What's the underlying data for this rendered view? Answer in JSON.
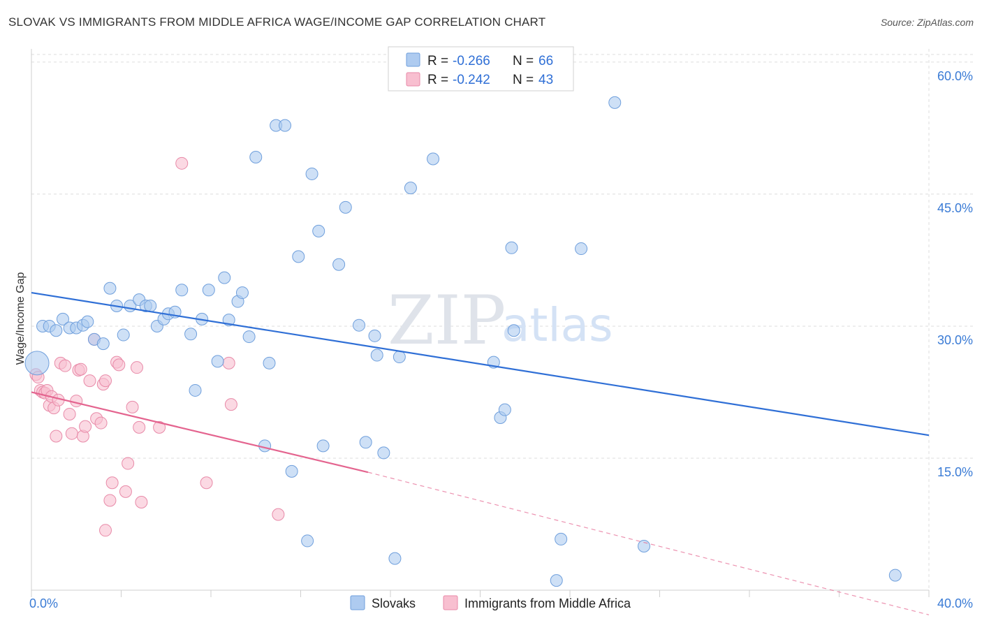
{
  "title": "SLOVAK VS IMMIGRANTS FROM MIDDLE AFRICA WAGE/INCOME GAP CORRELATION CHART",
  "source": "Source: ZipAtlas.com",
  "watermark": {
    "zip": "ZIP",
    "atlas": "atlas"
  },
  "legend": {
    "slovak": {
      "r_label": "R = ",
      "r_value": "-0.266",
      "n_label": "N = ",
      "n_value": "66"
    },
    "africa": {
      "r_label": "R = ",
      "r_value": "-0.242",
      "n_label": "N = ",
      "n_value": "43"
    }
  },
  "bottom_legend": {
    "slovak": "Slovaks",
    "africa": "Immigrants from Middle Africa"
  },
  "colors": {
    "slovak_fill": "#aecbf0",
    "slovak_stroke": "#6f9fdc",
    "slovak_line": "#2f6fd6",
    "africa_fill": "#f8bfd0",
    "africa_stroke": "#e88aa8",
    "africa_line": "#e4648f",
    "grid": "#dddddd",
    "tick_label": "#3a7bd5"
  },
  "chart_data": {
    "type": "scatter",
    "title": "SLOVAK VS IMMIGRANTS FROM MIDDLE AFRICA WAGE/INCOME GAP CORRELATION CHART",
    "xlabel": "",
    "ylabel": "Wage/Income Gap",
    "xlim": [
      0,
      40
    ],
    "ylim": [
      0,
      61.5
    ],
    "x_tick_labels": [
      "0.0%",
      "40.0%"
    ],
    "y_ticks": [
      15,
      30,
      45,
      60
    ],
    "y_tick_labels": [
      "15.0%",
      "30.0%",
      "45.0%",
      "60.0%"
    ],
    "grid": true,
    "legend_position": "top-center",
    "series": [
      {
        "name": "Slovaks",
        "points": [
          [
            0.25,
            25.8
          ],
          [
            0.5,
            30.0
          ],
          [
            0.8,
            30.0
          ],
          [
            1.1,
            29.5
          ],
          [
            1.4,
            30.8
          ],
          [
            1.7,
            29.8
          ],
          [
            2.0,
            29.8
          ],
          [
            2.3,
            30.1
          ],
          [
            2.5,
            30.5
          ],
          [
            2.8,
            28.5
          ],
          [
            3.2,
            28.0
          ],
          [
            3.5,
            34.3
          ],
          [
            3.8,
            32.3
          ],
          [
            4.1,
            29.0
          ],
          [
            4.4,
            32.3
          ],
          [
            4.8,
            33.0
          ],
          [
            5.1,
            32.3
          ],
          [
            5.3,
            32.3
          ],
          [
            5.6,
            30.0
          ],
          [
            5.9,
            30.8
          ],
          [
            6.1,
            31.4
          ],
          [
            6.4,
            31.6
          ],
          [
            6.7,
            34.1
          ],
          [
            7.1,
            29.1
          ],
          [
            7.3,
            22.7
          ],
          [
            7.6,
            30.8
          ],
          [
            7.9,
            34.1
          ],
          [
            8.3,
            26.0
          ],
          [
            8.6,
            35.5
          ],
          [
            8.8,
            30.7
          ],
          [
            9.2,
            32.8
          ],
          [
            9.4,
            33.8
          ],
          [
            9.7,
            28.8
          ],
          [
            10.0,
            49.2
          ],
          [
            10.4,
            16.4
          ],
          [
            10.6,
            25.8
          ],
          [
            10.9,
            52.8
          ],
          [
            11.3,
            52.8
          ],
          [
            11.6,
            13.5
          ],
          [
            11.9,
            37.9
          ],
          [
            12.3,
            5.6
          ],
          [
            12.5,
            47.3
          ],
          [
            12.8,
            40.8
          ],
          [
            13.0,
            16.4
          ],
          [
            13.7,
            37.0
          ],
          [
            14.0,
            43.5
          ],
          [
            14.6,
            30.1
          ],
          [
            14.9,
            16.8
          ],
          [
            15.3,
            28.9
          ],
          [
            15.4,
            26.7
          ],
          [
            15.7,
            15.6
          ],
          [
            16.2,
            3.6
          ],
          [
            16.4,
            26.5
          ],
          [
            16.9,
            45.7
          ],
          [
            17.9,
            49.0
          ],
          [
            20.6,
            25.9
          ],
          [
            20.9,
            19.6
          ],
          [
            21.1,
            20.5
          ],
          [
            21.4,
            38.9
          ],
          [
            21.5,
            29.5
          ],
          [
            23.4,
            1.1
          ],
          [
            23.6,
            5.8
          ],
          [
            24.5,
            38.8
          ],
          [
            26.0,
            55.4
          ],
          [
            27.3,
            5.0
          ],
          [
            38.5,
            1.7
          ]
        ],
        "trend_line": {
          "x": [
            0,
            40
          ],
          "y": [
            33.8,
            17.6
          ]
        }
      },
      {
        "name": "Immigrants from Middle Africa",
        "points": [
          [
            0.2,
            24.5
          ],
          [
            0.3,
            24.2
          ],
          [
            0.4,
            22.7
          ],
          [
            0.5,
            22.5
          ],
          [
            0.6,
            22.4
          ],
          [
            0.7,
            22.7
          ],
          [
            0.8,
            21.0
          ],
          [
            0.9,
            22.0
          ],
          [
            1.0,
            20.7
          ],
          [
            1.1,
            17.5
          ],
          [
            1.2,
            21.6
          ],
          [
            1.3,
            25.8
          ],
          [
            1.5,
            25.5
          ],
          [
            1.7,
            20.0
          ],
          [
            1.8,
            17.8
          ],
          [
            2.0,
            21.5
          ],
          [
            2.1,
            25.0
          ],
          [
            2.2,
            25.1
          ],
          [
            2.3,
            17.5
          ],
          [
            2.4,
            18.6
          ],
          [
            2.6,
            23.8
          ],
          [
            2.8,
            28.5
          ],
          [
            2.9,
            19.5
          ],
          [
            3.1,
            19.0
          ],
          [
            3.2,
            23.4
          ],
          [
            3.3,
            23.8
          ],
          [
            3.3,
            6.8
          ],
          [
            3.5,
            10.2
          ],
          [
            3.6,
            12.2
          ],
          [
            3.8,
            25.9
          ],
          [
            3.9,
            25.6
          ],
          [
            4.2,
            11.2
          ],
          [
            4.3,
            14.4
          ],
          [
            4.5,
            20.8
          ],
          [
            4.7,
            25.3
          ],
          [
            4.8,
            18.5
          ],
          [
            4.9,
            10.0
          ],
          [
            5.7,
            18.5
          ],
          [
            6.7,
            48.5
          ],
          [
            7.8,
            12.2
          ],
          [
            8.8,
            25.8
          ],
          [
            8.9,
            21.1
          ],
          [
            11.0,
            8.6
          ]
        ],
        "trend_line": {
          "x": [
            0,
            15
          ],
          "y": [
            22.5,
            13.4
          ]
        },
        "trend_line_dashed": {
          "x": [
            15,
            40
          ],
          "y": [
            13.4,
            -2.8
          ]
        }
      }
    ]
  }
}
